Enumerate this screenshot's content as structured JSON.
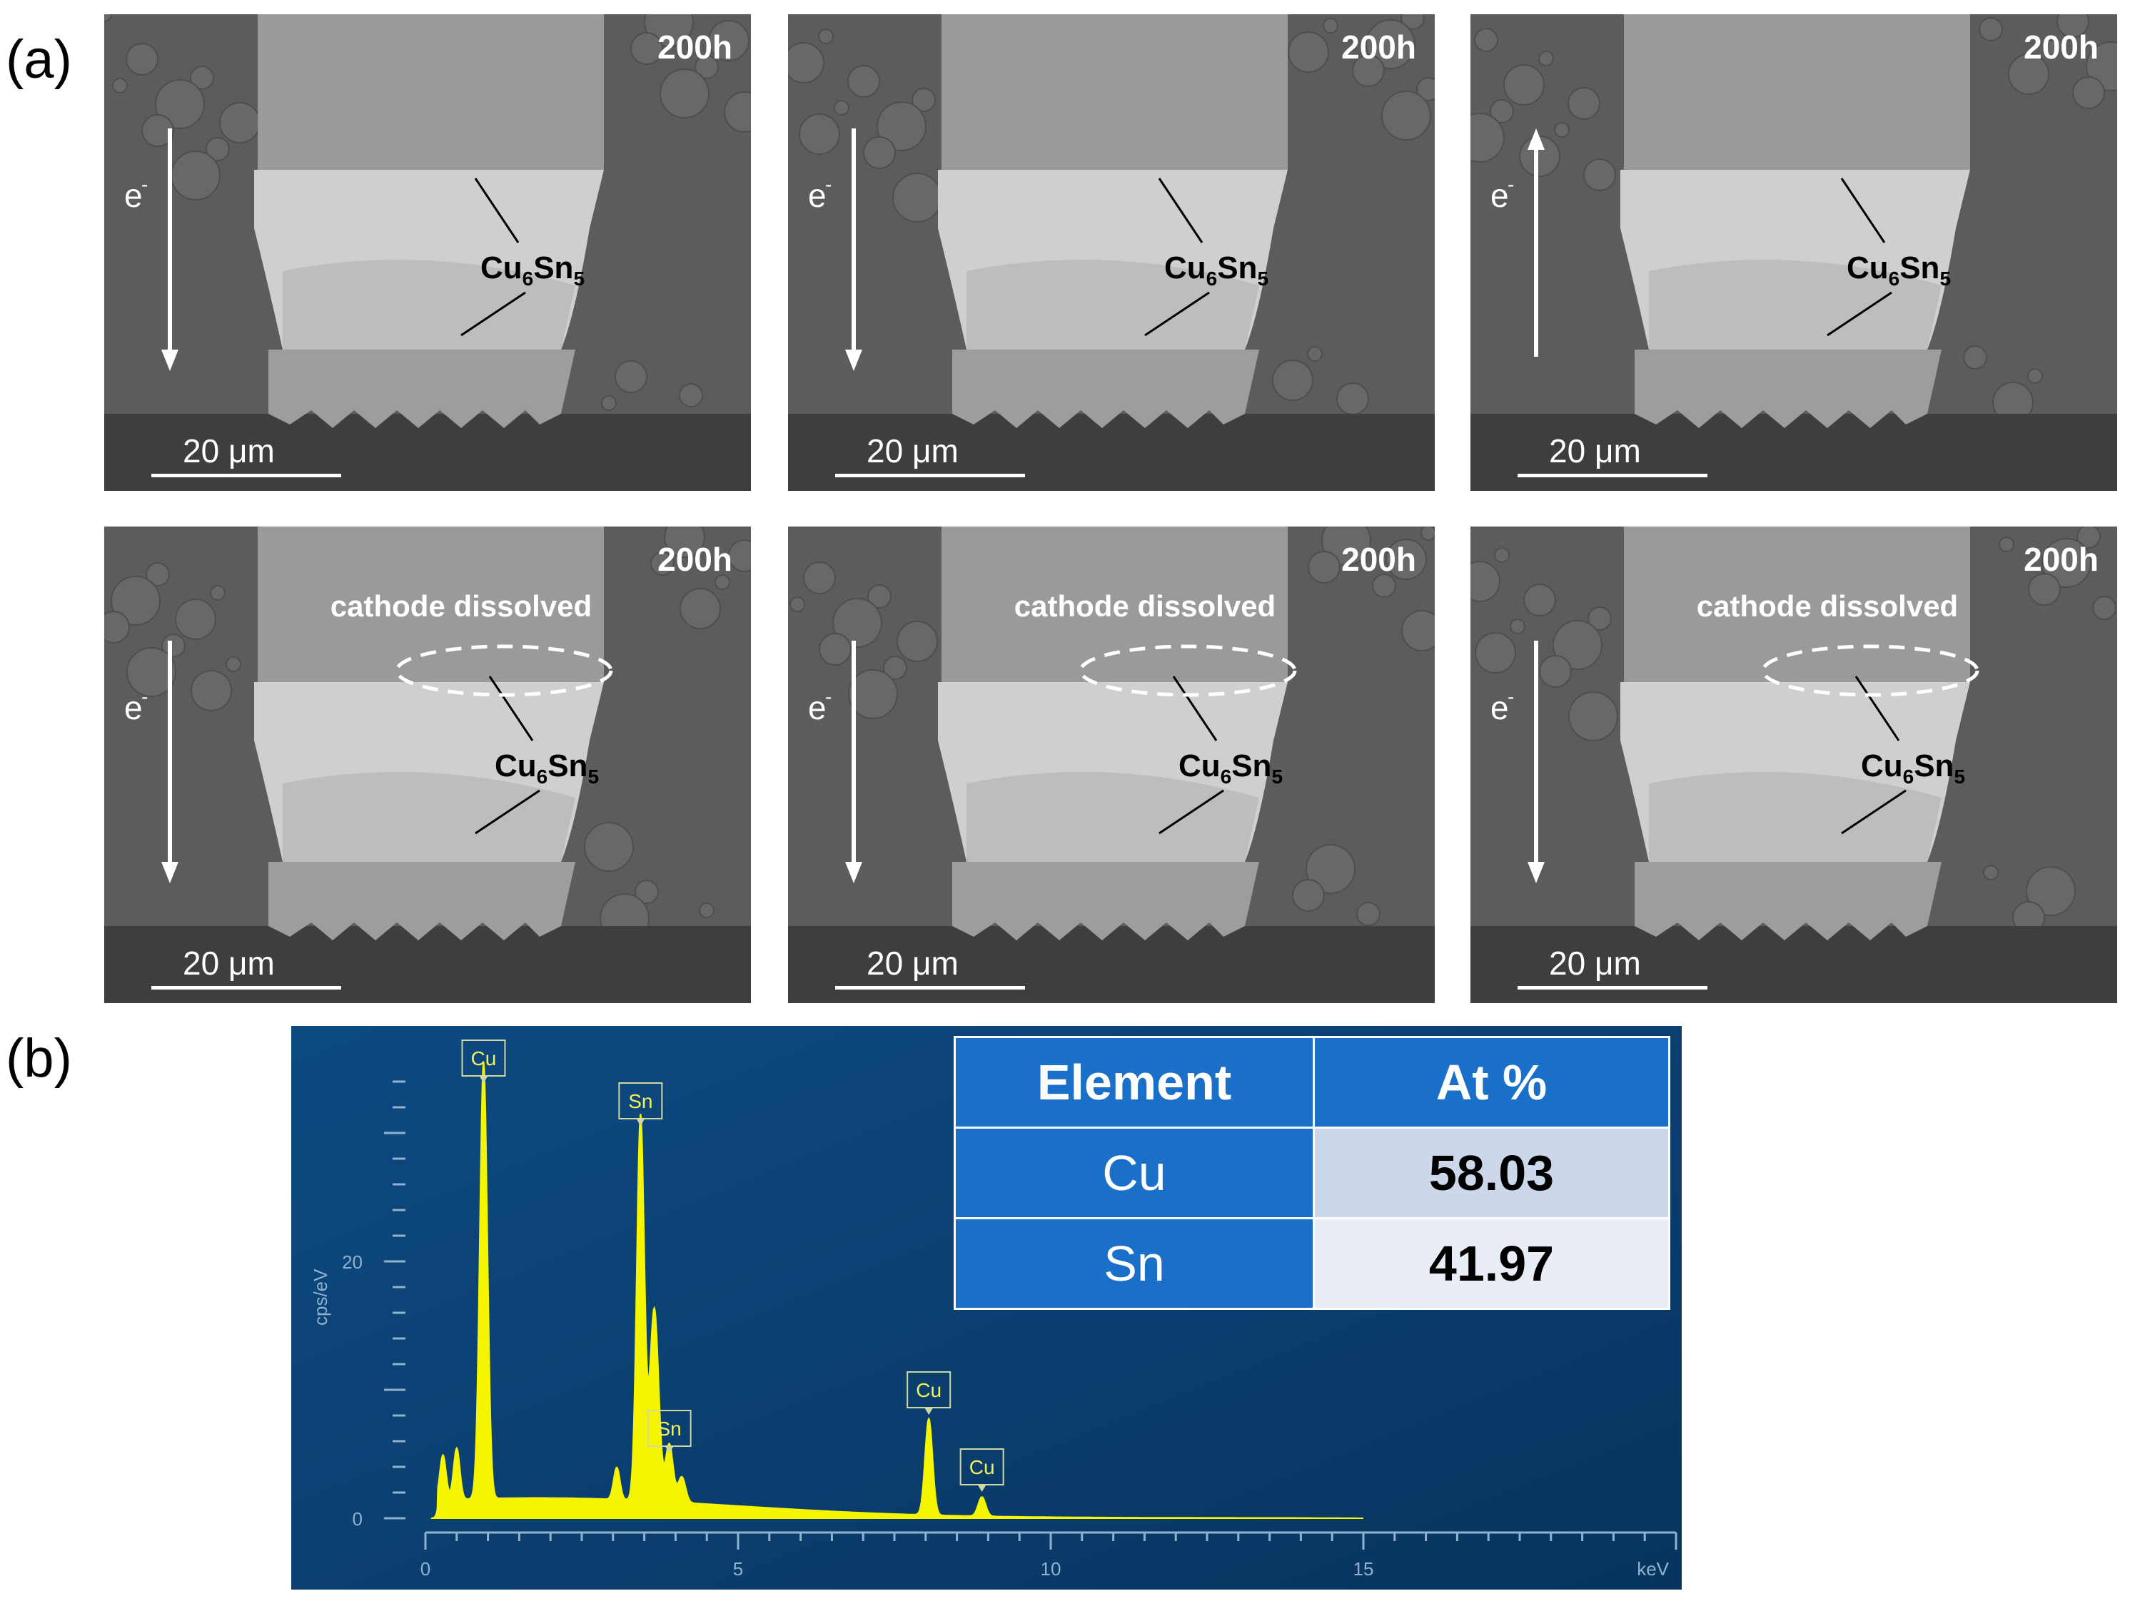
{
  "panel_a_label": "(a)",
  "panel_b_label": "(b)",
  "sem_panels": [
    {
      "time": "200h",
      "scale": "20 μm",
      "electron": "e",
      "electron_sup": "-",
      "current": "down",
      "phase": "Cu",
      "phase_sub1": "6",
      "phase_mid": "Sn",
      "phase_sub2": "5",
      "note": ""
    },
    {
      "time": "200h",
      "scale": "20 μm",
      "electron": "e",
      "electron_sup": "-",
      "current": "down",
      "phase": "Cu",
      "phase_sub1": "6",
      "phase_mid": "Sn",
      "phase_sub2": "5",
      "note": ""
    },
    {
      "time": "200h",
      "scale": "20 μm",
      "electron": "e",
      "electron_sup": "-",
      "current": "up",
      "phase": "Cu",
      "phase_sub1": "6",
      "phase_mid": "Sn",
      "phase_sub2": "5",
      "note": ""
    },
    {
      "time": "200h",
      "scale": "20 μm",
      "electron": "e",
      "electron_sup": "-",
      "current": "down",
      "phase": "Cu",
      "phase_sub1": "6",
      "phase_mid": "Sn",
      "phase_sub2": "5",
      "note": "cathode dissolved"
    },
    {
      "time": "200h",
      "scale": "20 μm",
      "electron": "e",
      "electron_sup": "-",
      "current": "down",
      "phase": "Cu",
      "phase_sub1": "6",
      "phase_mid": "Sn",
      "phase_sub2": "5",
      "note": "cathode dissolved"
    },
    {
      "time": "200h",
      "scale": "20 μm",
      "electron": "e",
      "electron_sup": "-",
      "current": "down",
      "phase": "Cu",
      "phase_sub1": "6",
      "phase_mid": "Sn",
      "phase_sub2": "5",
      "note": "cathode dissolved"
    }
  ],
  "eds": {
    "ylabel": "cps/eV",
    "xlabel": "keV",
    "xticks": [
      "0",
      "5",
      "10",
      "15"
    ],
    "yticks": [
      "0",
      "20"
    ],
    "xlim": [
      0,
      20
    ],
    "ylim": [
      0,
      35
    ],
    "peaks": [
      {
        "label": "Cu",
        "kev": 0.93,
        "cps": 34
      },
      {
        "label": "Sn",
        "kev": 3.44,
        "cps": 30
      },
      {
        "label": "Sn",
        "kev": 3.9,
        "cps": 4.5
      },
      {
        "label": "Cu",
        "kev": 8.05,
        "cps": 7.5
      },
      {
        "label": "Cu",
        "kev": 8.9,
        "cps": 1.5
      }
    ]
  },
  "table": {
    "headers": [
      "Element",
      "At %"
    ],
    "rows": [
      {
        "element": "Cu",
        "at": "58.03"
      },
      {
        "element": "Sn",
        "at": "41.97"
      }
    ]
  },
  "colors": {
    "eds_background": "#0b3d6e",
    "spectrum": "#f5f500",
    "table_header": "#1a6fc9"
  }
}
